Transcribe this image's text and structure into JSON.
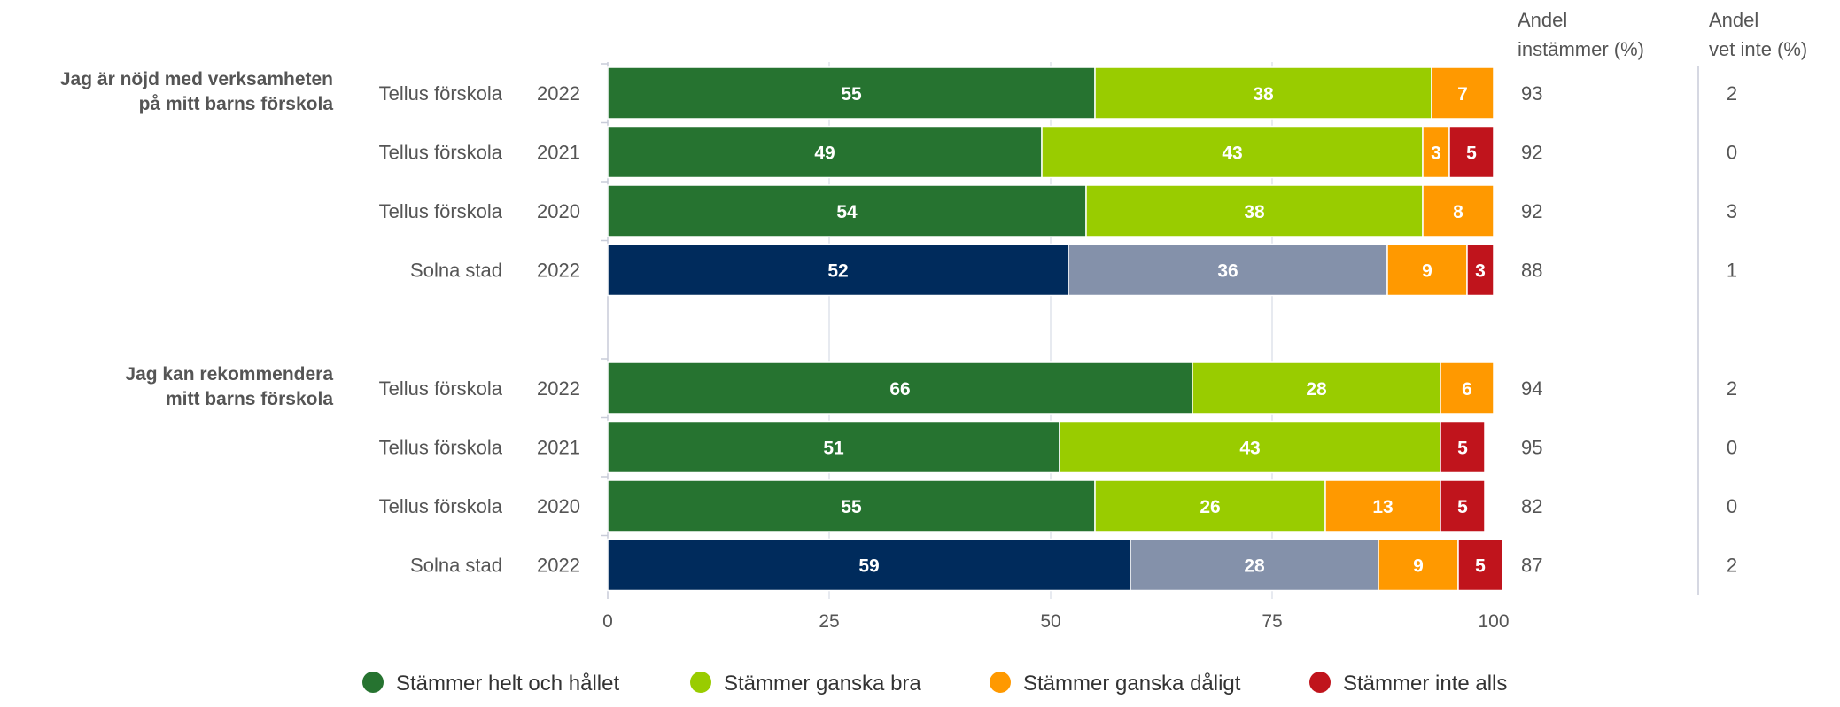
{
  "chart_data": {
    "type": "bar",
    "orientation": "horizontal",
    "stacked": true,
    "xlim": [
      0,
      100
    ],
    "x_ticks": [
      "0",
      "25",
      "50",
      "75",
      "100"
    ],
    "grid": true,
    "legend_position": "bottom",
    "column_headers": [
      [
        "Andel",
        "instämmer (%)"
      ],
      [
        "Andel",
        "vet inte (%)"
      ]
    ],
    "legend": [
      {
        "label": "Stämmer helt och hållet",
        "color": "#267330"
      },
      {
        "label": "Stämmer ganska bra",
        "color": "#99cc00"
      },
      {
        "label": "Stämmer ganska dåligt",
        "color": "#ff9900"
      },
      {
        "label": "Stämmer inte alls",
        "color": "#c0141c"
      }
    ],
    "comparison_colors": [
      "#002b5c",
      "#8491aa",
      "#ff9900",
      "#c0141c"
    ],
    "groups": [
      {
        "question": [
          "Jag är nöjd med verksamheten",
          "på mitt barns förskola"
        ],
        "rows": [
          {
            "unit": "Tellus förskola",
            "year": "2022",
            "values": [
              55,
              38,
              7,
              0
            ],
            "agree": "93",
            "dont_know": "2",
            "comparison": false
          },
          {
            "unit": "Tellus förskola",
            "year": "2021",
            "values": [
              49,
              43,
              3,
              5
            ],
            "agree": "92",
            "dont_know": "0",
            "comparison": false
          },
          {
            "unit": "Tellus förskola",
            "year": "2020",
            "values": [
              54,
              38,
              8,
              0
            ],
            "agree": "92",
            "dont_know": "3",
            "comparison": false
          },
          {
            "unit": "Solna stad",
            "year": "2022",
            "values": [
              52,
              36,
              9,
              3
            ],
            "agree": "88",
            "dont_know": "1",
            "comparison": true
          }
        ]
      },
      {
        "question": [
          "Jag kan rekommendera",
          "mitt barns förskola"
        ],
        "rows": [
          {
            "unit": "Tellus förskola",
            "year": "2022",
            "values": [
              66,
              28,
              6,
              0
            ],
            "agree": "94",
            "dont_know": "2",
            "comparison": false
          },
          {
            "unit": "Tellus förskola",
            "year": "2021",
            "values": [
              51,
              43,
              0,
              5
            ],
            "agree": "95",
            "dont_know": "0",
            "comparison": false
          },
          {
            "unit": "Tellus förskola",
            "year": "2020",
            "values": [
              55,
              26,
              13,
              5
            ],
            "agree": "82",
            "dont_know": "0",
            "comparison": false
          },
          {
            "unit": "Solna stad",
            "year": "2022",
            "values": [
              59,
              28,
              9,
              5
            ],
            "agree": "87",
            "dont_know": "2",
            "comparison": true
          }
        ]
      }
    ]
  }
}
